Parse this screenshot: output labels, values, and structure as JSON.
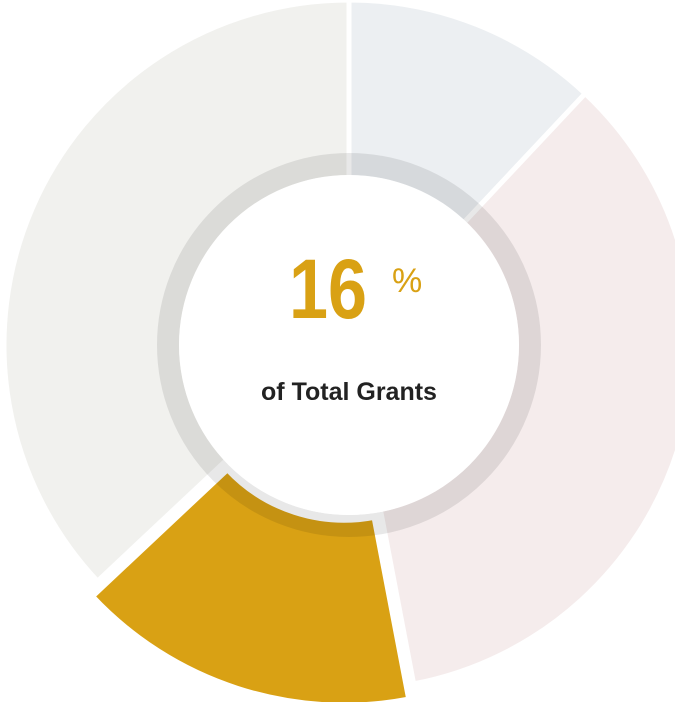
{
  "chart_data": {
    "type": "donut",
    "categories": [
      null,
      null,
      null,
      null
    ],
    "values": [
      12,
      35,
      16,
      37
    ],
    "colors": [
      "#eceff2",
      "#f5ecec",
      "#d9a114",
      "#f1f1ee"
    ],
    "highlight": 2,
    "center_label": {
      "value": "16",
      "unit": "%",
      "text": "of Total Grants"
    }
  }
}
